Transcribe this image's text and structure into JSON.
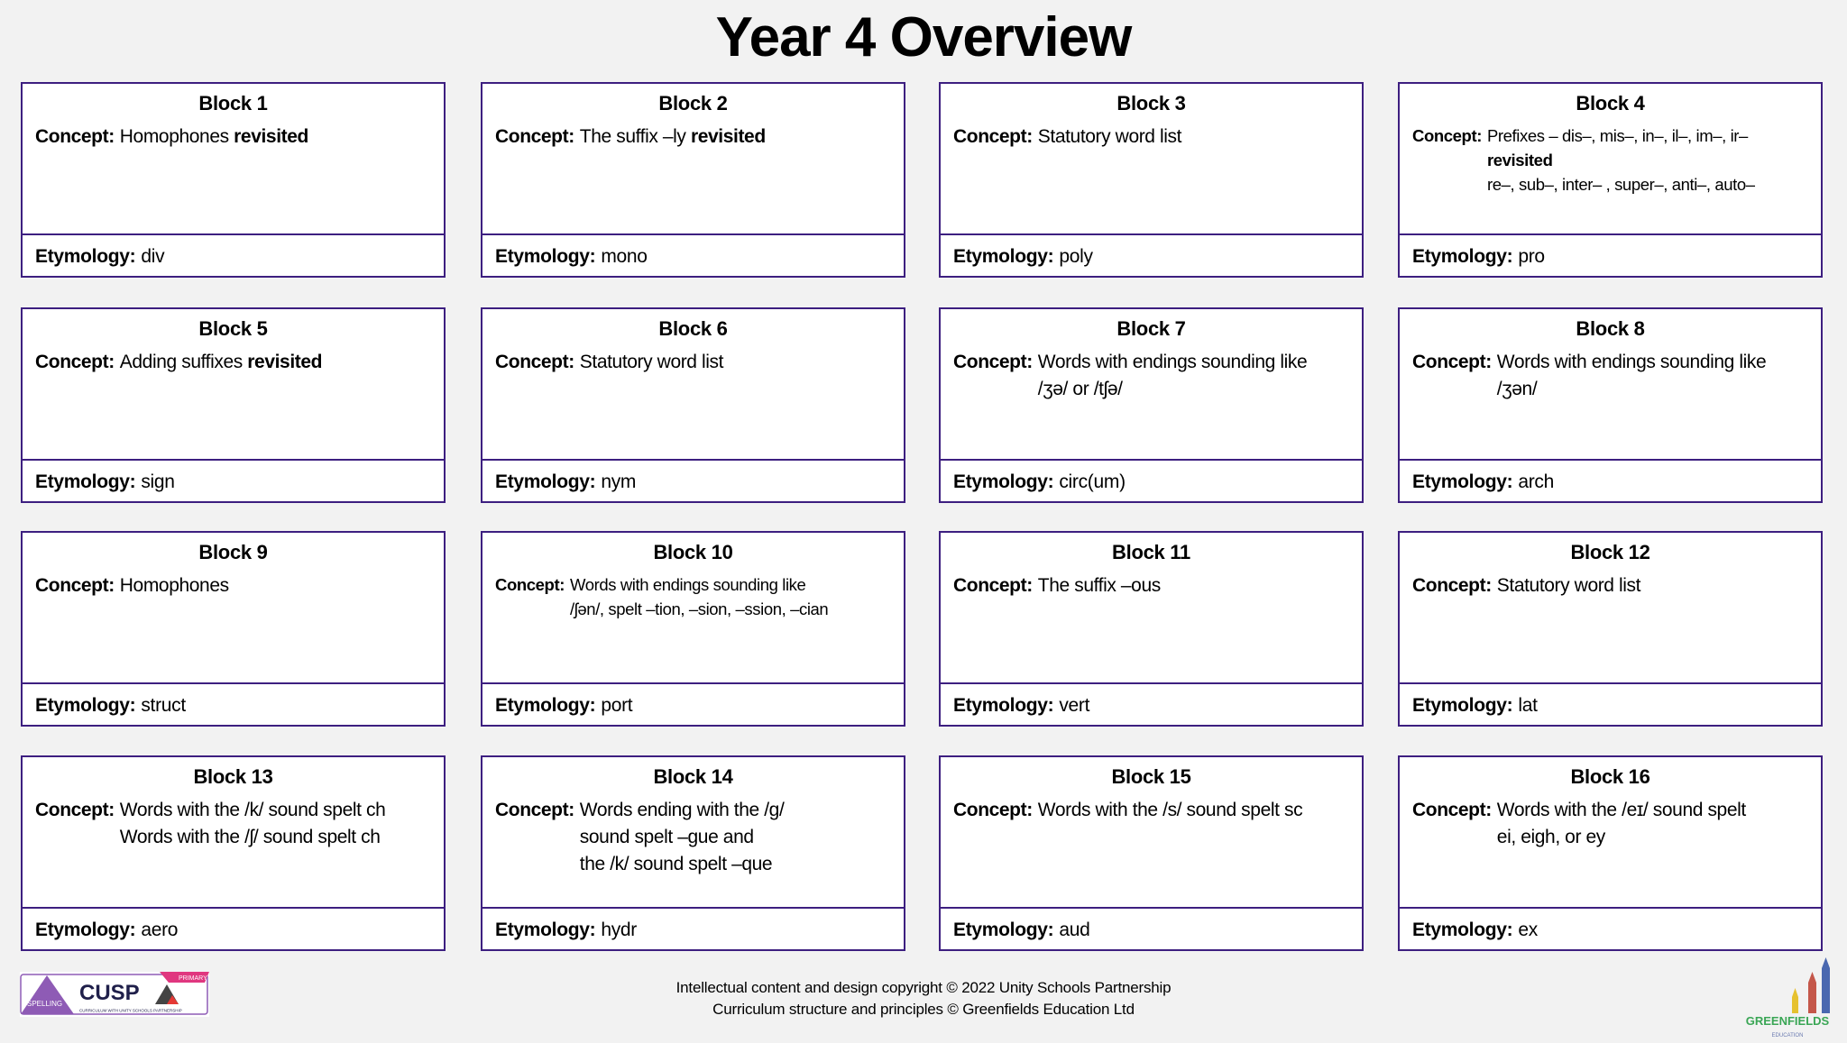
{
  "page": {
    "title": "Year 4 Overview"
  },
  "labels": {
    "concept": "Concept:",
    "etymology": "Etymology:"
  },
  "blocks": [
    {
      "name": "Block 1",
      "concept": [
        [
          {
            "t": "Homophones "
          },
          {
            "t": "revisited",
            "b": true
          }
        ]
      ],
      "etymology": "div"
    },
    {
      "name": "Block 2",
      "concept": [
        [
          {
            "t": "The suffix –ly "
          },
          {
            "t": "revisited",
            "b": true
          }
        ]
      ],
      "etymology": "mono"
    },
    {
      "name": "Block 3",
      "concept": [
        [
          {
            "t": "Statutory word list"
          }
        ]
      ],
      "etymology": "poly"
    },
    {
      "name": "Block 4",
      "small": true,
      "concept": [
        [
          {
            "t": "Prefixes – dis–, mis–, in–, il–, im–, ir–"
          }
        ],
        [
          {
            "t": "revisited",
            "b": true
          }
        ],
        [
          {
            "t": "re–, sub–, inter– , super–, anti–, auto–"
          }
        ]
      ],
      "etymology": "pro"
    },
    {
      "name": "Block 5",
      "concept": [
        [
          {
            "t": "Adding suffixes "
          },
          {
            "t": "revisited",
            "b": true
          }
        ]
      ],
      "etymology": "sign"
    },
    {
      "name": "Block 6",
      "concept": [
        [
          {
            "t": "Statutory word list"
          }
        ]
      ],
      "etymology": "nym"
    },
    {
      "name": "Block 7",
      "concept": [
        [
          {
            "t": "Words with endings sounding like"
          }
        ],
        [
          {
            "t": "/ʒə/ or /tʃə/"
          }
        ]
      ],
      "etymology": "circ(um)"
    },
    {
      "name": "Block 8",
      "concept": [
        [
          {
            "t": "Words with endings sounding like"
          }
        ],
        [
          {
            "t": "/ʒən/"
          }
        ]
      ],
      "etymology": "arch"
    },
    {
      "name": "Block 9",
      "concept": [
        [
          {
            "t": "Homophones"
          }
        ]
      ],
      "etymology": "struct"
    },
    {
      "name": "Block 10",
      "small": true,
      "concept": [
        [
          {
            "t": "Words with endings sounding like"
          }
        ],
        [
          {
            "t": "/ʃən/, spelt –tion, –sion, –ssion, –cian"
          }
        ]
      ],
      "etymology": "port"
    },
    {
      "name": "Block 11",
      "concept": [
        [
          {
            "t": "The suffix –ous"
          }
        ]
      ],
      "etymology": "vert"
    },
    {
      "name": "Block 12",
      "concept": [
        [
          {
            "t": "Statutory word list"
          }
        ]
      ],
      "etymology": "lat"
    },
    {
      "name": "Block 13",
      "concept": [
        [
          {
            "t": "Words with the /k/ sound spelt ch"
          }
        ],
        [
          {
            "t": "Words with the /ʃ/ sound spelt ch"
          }
        ]
      ],
      "etymology": "aero"
    },
    {
      "name": "Block 14",
      "concept": [
        [
          {
            "t": "Words ending with the /g/"
          }
        ],
        [
          {
            "t": "sound spelt –gue and"
          }
        ],
        [
          {
            "t": "the /k/ sound spelt –que"
          }
        ]
      ],
      "etymology": "hydr"
    },
    {
      "name": "Block 15",
      "concept": [
        [
          {
            "t": "Words with the /s/ sound spelt sc"
          }
        ]
      ],
      "etymology": "aud"
    },
    {
      "name": "Block 16",
      "concept": [
        [
          {
            "t": "Words with the /eɪ/ sound spelt"
          }
        ],
        [
          {
            "t": "ei, eigh, or ey"
          }
        ]
      ],
      "etymology": "ex"
    }
  ],
  "footer": {
    "line1": "Intellectual content and design copyright © 2022 Unity Schools Partnership",
    "line2": "Curriculum structure and principles © Greenfields Education Ltd"
  },
  "logos": {
    "cusp": {
      "text": "CUSP",
      "tag": "SPELLING",
      "badge": "PRIMARY",
      "subtitle": "CURRICULUM WITH UNITY SCHOOLS PARTNERSHIP"
    },
    "greenfields": {
      "text": "GREENFIELDS",
      "subtitle": "EDUCATION"
    }
  },
  "colors": {
    "border": "#3d1f80",
    "background": "#f2f2f2",
    "cusp_purple": "#8e5bb5",
    "cusp_pink": "#e0377f",
    "greenfields_green": "#3aa655"
  }
}
